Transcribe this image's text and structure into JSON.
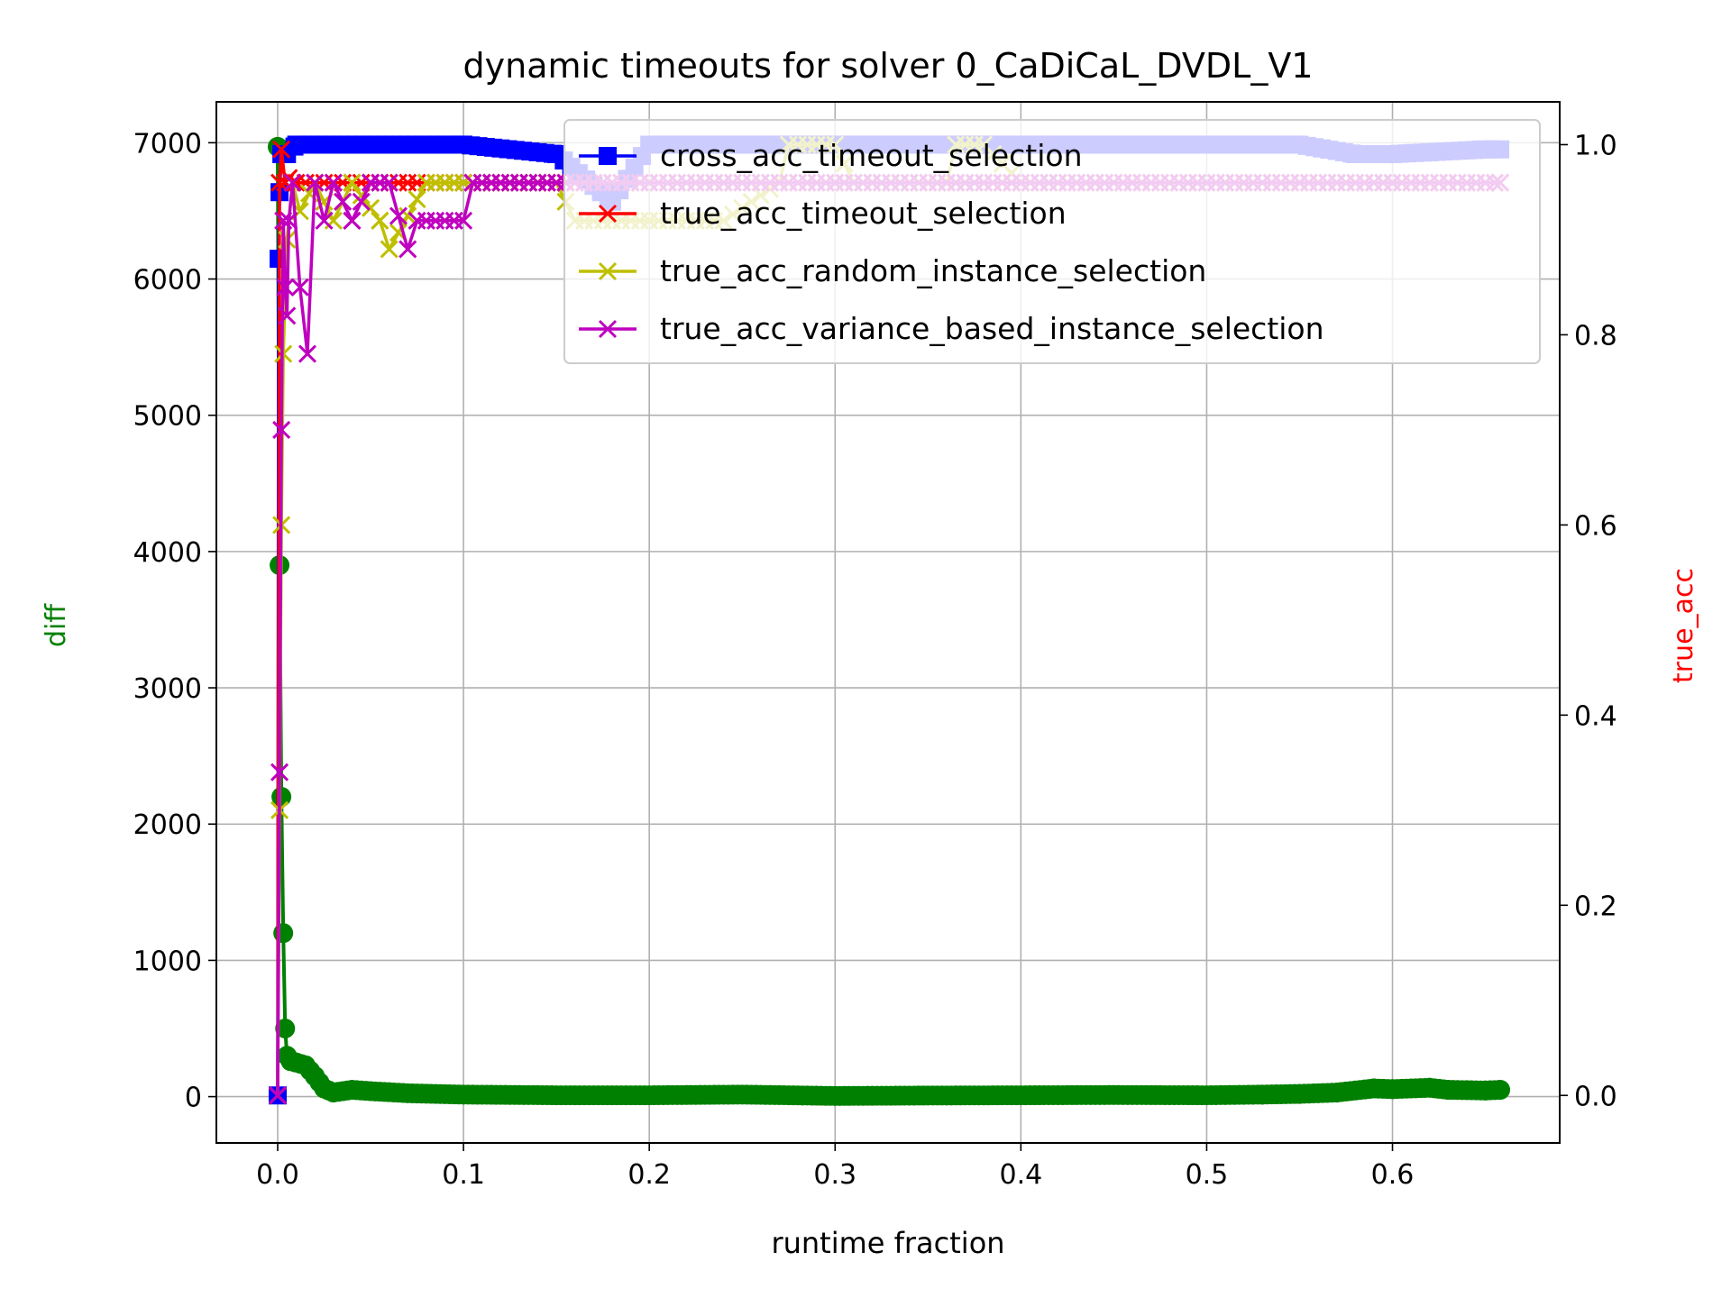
{
  "chart_data": {
    "type": "line",
    "title": "dynamic timeouts for solver 0_CaDiCaL_DVDL_V1",
    "xlabel": "runtime fraction",
    "ylabel_left": "diff",
    "ylabel_right": "true_acc",
    "xlim": [
      -0.033,
      0.69
    ],
    "ylim_left": [
      -340,
      7300
    ],
    "ylim_right": [
      -0.05,
      1.045
    ],
    "x_ticks": [
      {
        "value": 0.0,
        "label": "0.0"
      },
      {
        "value": 0.1,
        "label": "0.1"
      },
      {
        "value": 0.2,
        "label": "0.2"
      },
      {
        "value": 0.3,
        "label": "0.3"
      },
      {
        "value": 0.4,
        "label": "0.4"
      },
      {
        "value": 0.5,
        "label": "0.5"
      },
      {
        "value": 0.6,
        "label": "0.6"
      }
    ],
    "y_left_ticks": [
      {
        "value": 0,
        "label": "0"
      },
      {
        "value": 1000,
        "label": "1000"
      },
      {
        "value": 2000,
        "label": "2000"
      },
      {
        "value": 3000,
        "label": "3000"
      },
      {
        "value": 4000,
        "label": "4000"
      },
      {
        "value": 5000,
        "label": "5000"
      },
      {
        "value": 6000,
        "label": "6000"
      },
      {
        "value": 7000,
        "label": "7000"
      }
    ],
    "y_right_ticks": [
      {
        "value": 0.0,
        "label": "0.0"
      },
      {
        "value": 0.2,
        "label": "0.2"
      },
      {
        "value": 0.4,
        "label": "0.4"
      },
      {
        "value": 0.6,
        "label": "0.6"
      },
      {
        "value": 0.8,
        "label": "0.8"
      },
      {
        "value": 1.0,
        "label": "1.0"
      }
    ],
    "grid": true,
    "legend_position": "top-right",
    "series": [
      {
        "name": "",
        "axis": "left",
        "color": "#008000",
        "marker": "circle",
        "x": [
          0.0,
          0.001,
          0.002,
          0.003,
          0.004,
          0.005,
          0.007,
          0.01,
          0.015,
          0.02,
          0.025,
          0.03,
          0.04,
          0.05,
          0.07,
          0.1,
          0.15,
          0.2,
          0.25,
          0.3,
          0.35,
          0.4,
          0.45,
          0.5,
          0.53,
          0.55,
          0.57,
          0.59,
          0.6,
          0.62,
          0.63,
          0.65,
          0.658
        ],
        "y": [
          6970,
          3900,
          2200,
          1200,
          500,
          300,
          260,
          250,
          230,
          150,
          60,
          30,
          50,
          40,
          25,
          15,
          10,
          10,
          15,
          5,
          8,
          10,
          12,
          10,
          15,
          20,
          30,
          60,
          55,
          65,
          50,
          45,
          50
        ]
      },
      {
        "name": "cross_acc_timeout_selection",
        "axis": "right",
        "color": "#0000ff",
        "marker": "square",
        "x": [
          0.0,
          0.0005,
          0.001,
          0.002,
          0.005,
          0.01,
          0.05,
          0.1,
          0.15,
          0.18,
          0.2,
          0.3,
          0.4,
          0.5,
          0.55,
          0.58,
          0.6,
          0.65,
          0.658
        ],
        "y": [
          0.0,
          0.88,
          0.95,
          0.99,
          0.99,
          1.0,
          1.0,
          1.0,
          0.99,
          0.94,
          1.0,
          1.0,
          1.0,
          1.0,
          1.0,
          0.99,
          0.99,
          0.995,
          0.995
        ]
      },
      {
        "name": "true_acc_timeout_selection",
        "axis": "right",
        "color": "#ff0000",
        "marker": "x",
        "x": [
          0.0,
          0.001,
          0.002,
          0.004,
          0.006,
          0.01,
          0.02,
          0.05,
          0.1,
          0.15,
          0.2,
          0.3,
          0.4,
          0.5,
          0.6,
          0.658
        ],
        "y": [
          0.0,
          0.96,
          0.995,
          0.96,
          0.965,
          0.96,
          0.96,
          0.96,
          0.96,
          0.96,
          0.96,
          0.96,
          0.96,
          0.96,
          0.96,
          0.96
        ]
      },
      {
        "name": "true_acc_random_instance_selection",
        "axis": "right",
        "color": "#bfbf00",
        "marker": "x",
        "x": [
          0.0,
          0.001,
          0.002,
          0.003,
          0.005,
          0.008,
          0.012,
          0.02,
          0.03,
          0.04,
          0.055,
          0.06,
          0.08,
          0.1,
          0.12,
          0.15,
          0.16,
          0.18,
          0.19,
          0.22,
          0.24,
          0.27,
          0.275,
          0.3,
          0.31,
          0.36,
          0.365,
          0.38,
          0.4
        ],
        "y": [
          0.0,
          0.3,
          0.6,
          0.78,
          0.9,
          0.96,
          0.93,
          0.96,
          0.92,
          0.96,
          0.92,
          0.89,
          0.96,
          0.96,
          0.96,
          0.96,
          0.92,
          0.92,
          0.92,
          0.92,
          0.92,
          0.96,
          1.0,
          1.0,
          0.96,
          0.96,
          1.0,
          1.0,
          0.96
        ]
      },
      {
        "name": "true_acc_variance_based_instance_selection",
        "axis": "right",
        "color": "#bf00bf",
        "marker": "x",
        "x": [
          0.0,
          0.001,
          0.002,
          0.003,
          0.004,
          0.005,
          0.006,
          0.008,
          0.012,
          0.016,
          0.02,
          0.025,
          0.03,
          0.04,
          0.05,
          0.06,
          0.07,
          0.075,
          0.09,
          0.1,
          0.105,
          0.11,
          0.13,
          0.17,
          0.2,
          0.3,
          0.4,
          0.5,
          0.6,
          0.658
        ],
        "y": [
          0.0,
          0.34,
          0.7,
          0.92,
          0.85,
          0.82,
          0.92,
          0.96,
          0.85,
          0.78,
          0.96,
          0.92,
          0.96,
          0.92,
          0.96,
          0.96,
          0.89,
          0.92,
          0.92,
          0.92,
          0.96,
          0.96,
          0.96,
          0.96,
          0.96,
          0.96,
          0.96,
          0.96,
          0.96,
          0.96
        ]
      }
    ]
  }
}
